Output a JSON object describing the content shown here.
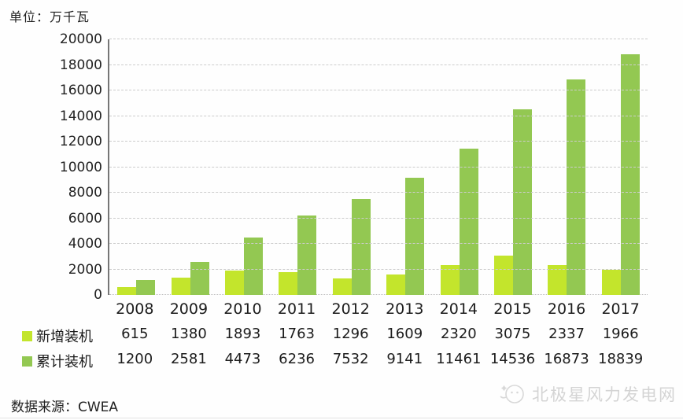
{
  "unit_label": "单位：万千瓦",
  "source_label": "数据来源：CWEA",
  "watermark": {
    "icon": "polaris-star-logo",
    "text": "北极星风力发电网"
  },
  "colors": {
    "new_installed": "#c3e52c",
    "cumulative": "#93c852",
    "axis_line": "#767676",
    "gridline": "#cccccc",
    "text": "#1c1c1c",
    "watermark": "#d4d4d4"
  },
  "chart_data": {
    "type": "bar",
    "title": "",
    "xlabel": "",
    "ylabel": "单位：万千瓦",
    "categories": [
      "2008",
      "2009",
      "2010",
      "2011",
      "2012",
      "2013",
      "2014",
      "2015",
      "2016",
      "2017"
    ],
    "series": [
      {
        "name": "新增装机",
        "color": "#c3e52c",
        "values": [
          615,
          1380,
          1893,
          1763,
          1296,
          1609,
          2320,
          3075,
          2337,
          1966
        ]
      },
      {
        "name": "累计装机",
        "color": "#93c852",
        "values": [
          1200,
          2581,
          4473,
          6236,
          7532,
          9141,
          11461,
          14536,
          16873,
          18839
        ]
      }
    ],
    "ylim": [
      0,
      20000
    ],
    "ytick_step": 2000,
    "yticks": [
      0,
      2000,
      4000,
      6000,
      8000,
      10000,
      12000,
      14000,
      16000,
      18000,
      20000
    ],
    "grid": "horizontal-dashed",
    "legend_position": "left-of-data-table-rows",
    "data_table_below_axis": true
  }
}
